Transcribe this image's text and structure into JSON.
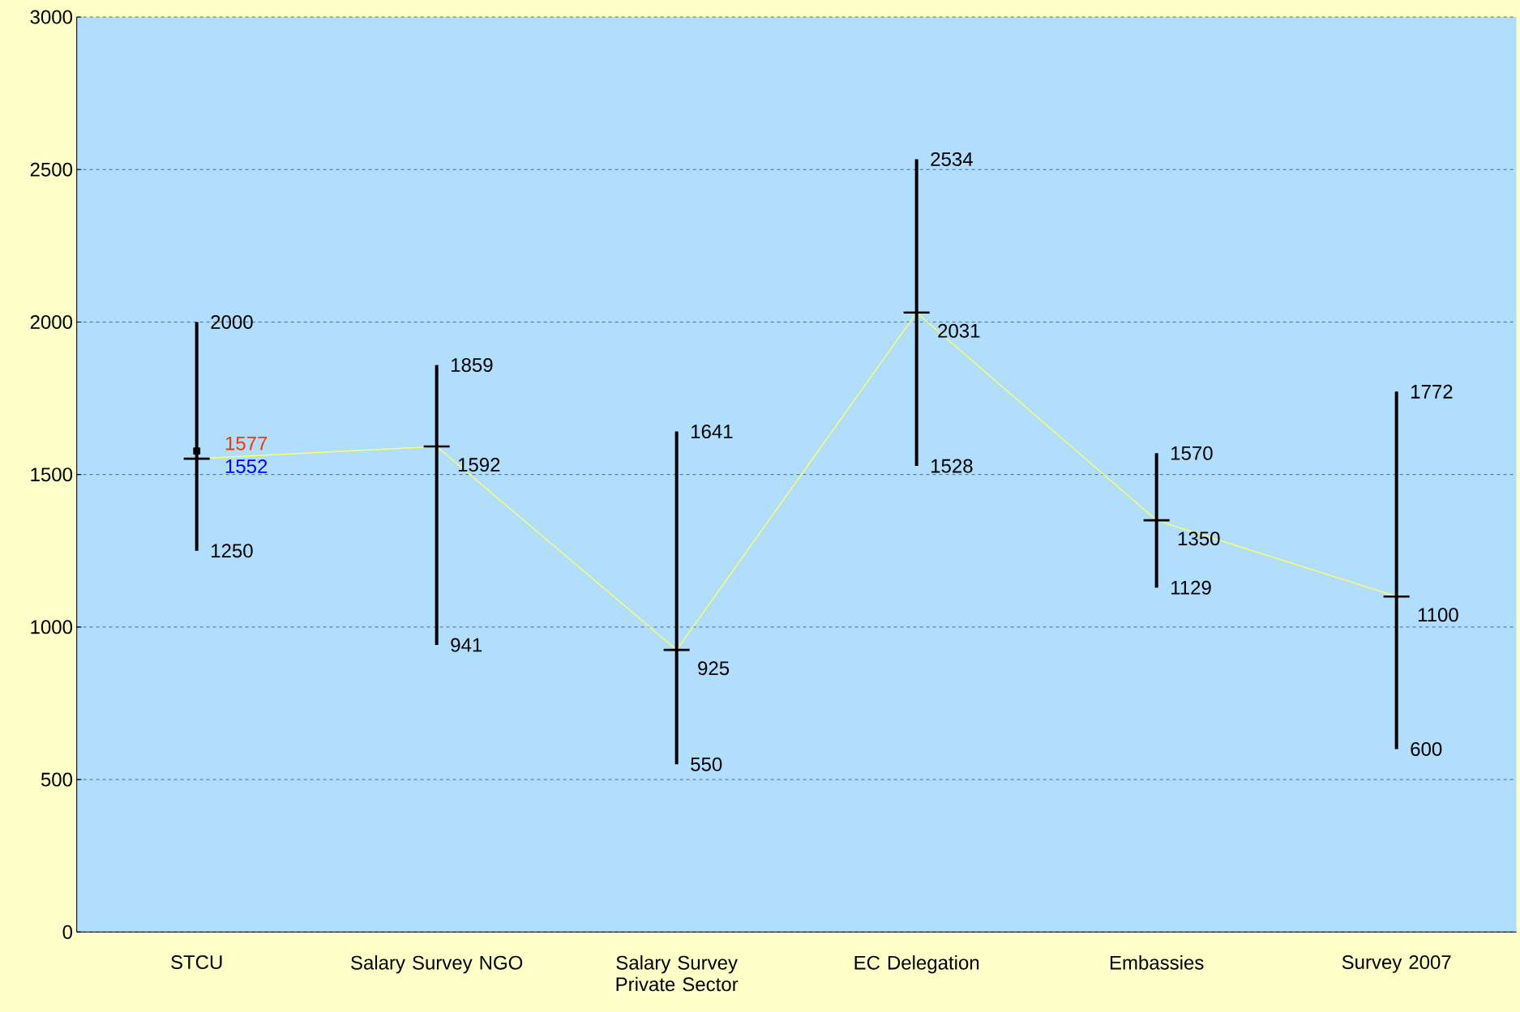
{
  "chart_data": {
    "type": "line",
    "categories": [
      "STCU",
      "Salary Survey NGO",
      "Salary Survey Private Sector",
      "EC Delegation",
      "Embassies",
      "Survey 2007"
    ],
    "annotations": [
      {
        "text": "2000",
        "x": "STCU",
        "y": 2000
      },
      {
        "text": "1250",
        "x": "STCU",
        "y": 1250
      },
      {
        "text": "1859",
        "x": "Salary Survey NGO",
        "y": 1859
      },
      {
        "text": "941",
        "x": "Salary Survey NGO",
        "y": 941
      },
      {
        "text": "1641",
        "x": "Salary Survey Private Sector",
        "y": 1641
      },
      {
        "text": "550",
        "x": "Salary Survey Private Sector",
        "y": 550
      },
      {
        "text": "2534",
        "x": "EC Delegation",
        "y": 2534
      },
      {
        "text": "1528",
        "x": "EC Delegation",
        "y": 1528
      },
      {
        "text": "1570",
        "x": "Embassies",
        "y": 1570
      },
      {
        "text": "1129",
        "x": "Embassies",
        "y": 1129
      },
      {
        "text": "1772",
        "x": "Survey 2007",
        "y": 1772
      },
      {
        "text": "600",
        "x": "Survey 2007",
        "y": 600
      }
    ],
    "series": [
      {
        "color": "#ffff66",
        "values": [
          1552,
          1592,
          925,
          2031,
          1350,
          1100
        ],
        "errors": [
          [
            1250,
            2000
          ],
          [
            941,
            1859
          ],
          [
            550,
            1641
          ],
          [
            1528,
            2534
          ],
          [
            1129,
            1570
          ],
          [
            600,
            1772
          ]
        ]
      },
      {
        "type": "scatter",
        "color": "#000000",
        "marker": "square",
        "x": [
          "STCU"
        ],
        "values": [
          1577
        ]
      }
    ],
    "data_labels": true,
    "ylim": [
      0,
      3000
    ],
    "yticks": [
      0,
      500,
      1000,
      1500,
      2000,
      2500,
      3000
    ],
    "grid": "y"
  }
}
